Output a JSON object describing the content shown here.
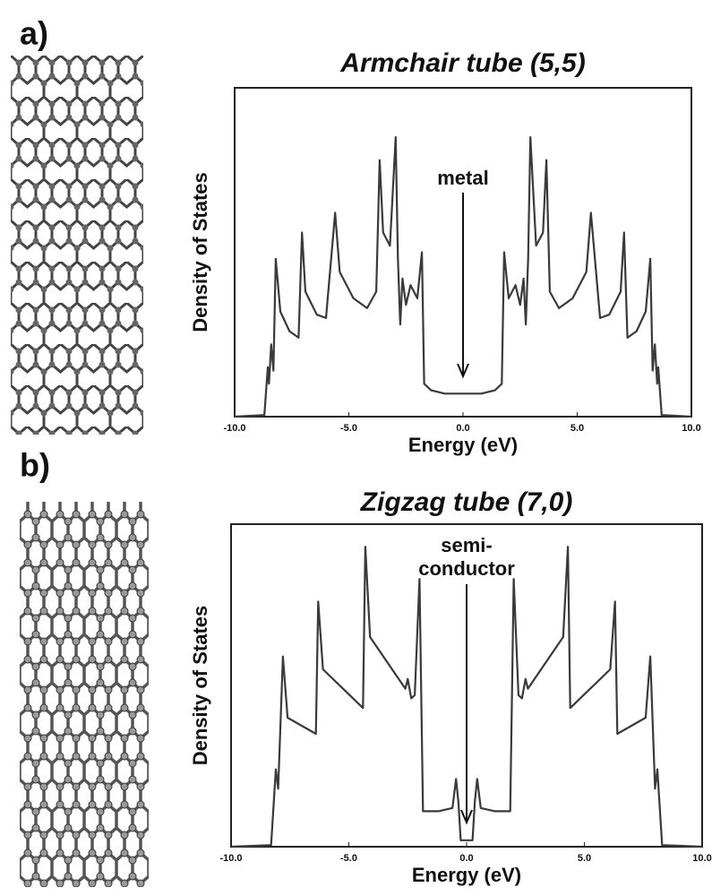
{
  "chart_data": [
    {
      "type": "line",
      "panel_label": "a)",
      "title": "Armchair tube (5,5)",
      "xlabel": "Energy (eV)",
      "ylabel": "Density of States",
      "annotation": [
        "metal"
      ],
      "xlim": [
        -10,
        10
      ],
      "ylim": [
        0,
        100
      ],
      "xticks": [
        {
          "value": -10,
          "label": "-10.0"
        },
        {
          "value": -5,
          "label": "-5.0"
        },
        {
          "value": 0,
          "label": "0.0"
        },
        {
          "value": 5,
          "label": "5.0"
        },
        {
          "value": 10,
          "label": "10.0"
        }
      ],
      "color": "#3a3a3a",
      "x": [
        -10,
        -8.7,
        -8.55,
        -8.5,
        -8.4,
        -8.3,
        -8.2,
        -8.0,
        -7.6,
        -7.2,
        -7.05,
        -6.9,
        -6.4,
        -6.0,
        -5.6,
        -5.4,
        -4.8,
        -4.2,
        -3.8,
        -3.65,
        -3.5,
        -3.2,
        -2.95,
        -2.85,
        -2.75,
        -2.65,
        -2.5,
        -2.3,
        -2.0,
        -1.8,
        -1.7,
        -1.4,
        -0.8,
        0,
        0.8,
        1.4,
        1.7,
        1.8,
        2.0,
        2.3,
        2.5,
        2.65,
        2.75,
        2.85,
        2.95,
        3.2,
        3.5,
        3.65,
        3.8,
        4.2,
        4.8,
        5.4,
        5.6,
        6.0,
        6.4,
        6.9,
        7.05,
        7.2,
        7.6,
        8.0,
        8.2,
        8.3,
        8.4,
        8.5,
        8.55,
        8.7,
        10
      ],
      "values": [
        0,
        0.5,
        15,
        10,
        22,
        14,
        48,
        32,
        26,
        24,
        56,
        38,
        31,
        30,
        62,
        44,
        36,
        33,
        38,
        78,
        56,
        52,
        85,
        48,
        28,
        42,
        34,
        40,
        36,
        50,
        10,
        8,
        7,
        7,
        7,
        8,
        10,
        50,
        36,
        40,
        34,
        42,
        28,
        48,
        85,
        52,
        56,
        78,
        38,
        33,
        36,
        44,
        62,
        30,
        31,
        38,
        56,
        24,
        26,
        32,
        48,
        14,
        22,
        10,
        15,
        0.5,
        0
      ]
    },
    {
      "type": "line",
      "panel_label": "b)",
      "title": "Zigzag tube (7,0)",
      "xlabel": "Energy (eV)",
      "ylabel": "Density of States",
      "annotation": [
        "semi-",
        "conductor"
      ],
      "xlim": [
        -10,
        10
      ],
      "ylim": [
        0,
        100
      ],
      "xticks": [
        {
          "value": -10,
          "label": "-10.0"
        },
        {
          "value": -5,
          "label": "-5.0"
        },
        {
          "value": 0,
          "label": "0.0"
        },
        {
          "value": 5,
          "label": "5.0"
        },
        {
          "value": 10,
          "label": "10.0"
        }
      ],
      "color": "#3a3a3a",
      "x": [
        -10,
        -8.3,
        -8.1,
        -8.0,
        -7.8,
        -7.6,
        -6.4,
        -6.3,
        -6.1,
        -4.4,
        -4.3,
        -4.1,
        -2.6,
        -2.5,
        -2.35,
        -2.2,
        -2.0,
        -1.85,
        -1.2,
        -0.6,
        -0.45,
        -0.35,
        -0.3,
        -0.25,
        0,
        0.25,
        0.3,
        0.35,
        0.45,
        0.6,
        1.2,
        1.85,
        2.0,
        2.2,
        2.35,
        2.5,
        2.6,
        4.1,
        4.3,
        4.4,
        6.1,
        6.3,
        6.4,
        7.6,
        7.8,
        8.0,
        8.1,
        8.3,
        10
      ],
      "values": [
        0,
        0.5,
        24,
        18,
        59,
        40,
        35,
        76,
        55,
        43,
        93,
        65,
        49,
        52,
        46,
        47,
        83,
        11,
        11,
        12,
        21,
        14,
        8,
        2,
        2,
        2,
        8,
        14,
        21,
        12,
        11,
        11,
        83,
        47,
        46,
        52,
        49,
        65,
        93,
        43,
        55,
        76,
        35,
        40,
        59,
        18,
        24,
        0.5,
        0
      ]
    }
  ]
}
